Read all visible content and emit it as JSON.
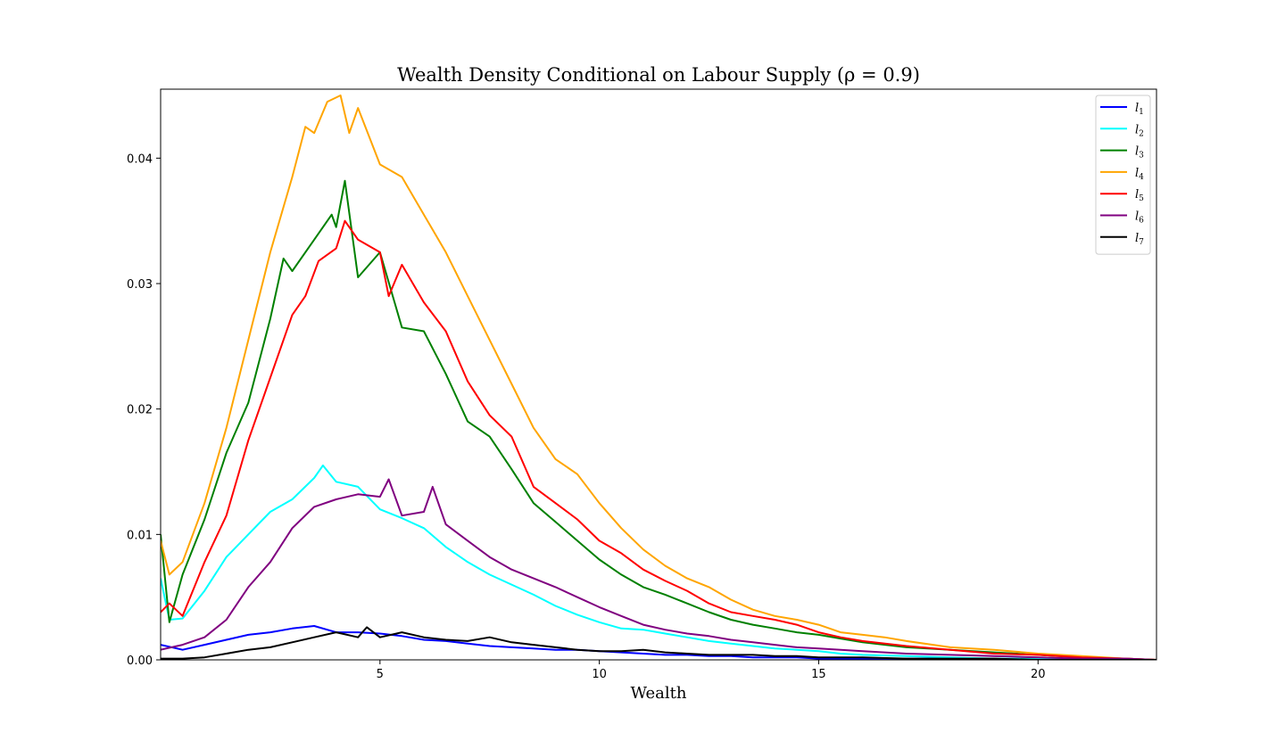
{
  "chart_data": {
    "type": "line",
    "title": "Wealth Density Conditional on Labour Supply (ρ = 0.9)",
    "xlabel": "Wealth",
    "ylabel": "",
    "xlim": [
      0,
      22.7
    ],
    "ylim": [
      0,
      0.0455
    ],
    "xticks": [
      5,
      10,
      15,
      20
    ],
    "yticks": [
      0.0,
      0.01,
      0.02,
      0.03,
      0.04
    ],
    "ytick_labels": [
      "0.00",
      "0.01",
      "0.02",
      "0.03",
      "0.04"
    ],
    "grid": false,
    "legend": "top-right",
    "series": [
      {
        "name": "l",
        "sub": "1",
        "color": "#0000ff",
        "x": [
          0,
          0.5,
          1,
          1.5,
          2,
          2.5,
          3,
          3.5,
          4,
          4.5,
          5,
          5.5,
          6,
          6.5,
          7,
          7.5,
          8,
          8.5,
          9,
          9.5,
          10,
          10.5,
          11,
          11.5,
          12,
          12.5,
          13,
          13.5,
          14,
          14.5,
          15,
          15.5,
          16,
          16.5,
          17,
          18,
          19,
          20,
          21,
          22,
          22.7
        ],
        "y": [
          0.0012,
          0.0008,
          0.0012,
          0.0016,
          0.002,
          0.0022,
          0.0025,
          0.0027,
          0.0022,
          0.0022,
          0.0021,
          0.0019,
          0.0016,
          0.0015,
          0.0013,
          0.0011,
          0.001,
          0.0009,
          0.0008,
          0.0008,
          0.0007,
          0.0006,
          0.0005,
          0.0004,
          0.0004,
          0.0003,
          0.0003,
          0.0002,
          0.0002,
          0.0002,
          0.0001,
          0.0001,
          0.0001,
          0.0001,
          0.0001,
          0.0001,
          0.0,
          0.0,
          0.0,
          0.0,
          0.0
        ]
      },
      {
        "name": "l",
        "sub": "2",
        "color": "#00ffff",
        "x": [
          0,
          0.2,
          0.5,
          1,
          1.5,
          2,
          2.5,
          3,
          3.5,
          3.7,
          4,
          4.5,
          5,
          5.5,
          6,
          6.5,
          7,
          7.5,
          8,
          8.5,
          9,
          9.5,
          10,
          10.5,
          11,
          11.5,
          12,
          12.5,
          13,
          13.5,
          14,
          14.5,
          15,
          15.5,
          16,
          17,
          18,
          19,
          20,
          21,
          22,
          22.7
        ],
        "y": [
          0.0065,
          0.0032,
          0.0033,
          0.0055,
          0.0082,
          0.01,
          0.0118,
          0.0128,
          0.0145,
          0.0155,
          0.0142,
          0.0138,
          0.012,
          0.0113,
          0.0105,
          0.009,
          0.0078,
          0.0068,
          0.006,
          0.0052,
          0.0043,
          0.0036,
          0.003,
          0.0025,
          0.0024,
          0.0021,
          0.0018,
          0.0015,
          0.0013,
          0.0011,
          0.0009,
          0.0008,
          0.0007,
          0.0005,
          0.0004,
          0.0003,
          0.0002,
          0.0001,
          0.0001,
          0.0,
          0.0,
          0.0
        ]
      },
      {
        "name": "l",
        "sub": "3",
        "color": "#008000",
        "x": [
          0,
          0.2,
          0.5,
          1,
          1.5,
          2,
          2.5,
          2.8,
          3,
          3.5,
          3.9,
          4,
          4.2,
          4.5,
          5,
          5.5,
          6,
          6.5,
          7,
          7.5,
          8,
          8.5,
          9,
          9.5,
          10,
          10.5,
          11,
          11.5,
          12,
          12.5,
          13,
          13.5,
          14,
          14.5,
          15,
          15.5,
          16,
          17,
          18,
          19,
          20,
          21,
          22,
          22.7
        ],
        "y": [
          0.01,
          0.003,
          0.0068,
          0.0112,
          0.0165,
          0.0205,
          0.0272,
          0.032,
          0.031,
          0.0335,
          0.0355,
          0.0345,
          0.0382,
          0.0305,
          0.0325,
          0.0265,
          0.0262,
          0.0228,
          0.019,
          0.0178,
          0.0152,
          0.0125,
          0.011,
          0.0095,
          0.008,
          0.0068,
          0.0058,
          0.0052,
          0.0045,
          0.0038,
          0.0032,
          0.0028,
          0.0025,
          0.0022,
          0.002,
          0.0017,
          0.0014,
          0.001,
          0.0008,
          0.0006,
          0.0004,
          0.0002,
          0.0001,
          0.0
        ]
      },
      {
        "name": "l",
        "sub": "4",
        "color": "#ffa500",
        "x": [
          0,
          0.2,
          0.5,
          1,
          1.5,
          2,
          2.5,
          3,
          3.3,
          3.5,
          3.8,
          4.1,
          4.3,
          4.5,
          5,
          5.5,
          6,
          6.5,
          7,
          7.5,
          8,
          8.5,
          9,
          9.5,
          10,
          10.5,
          11,
          11.5,
          12,
          12.5,
          13,
          13.5,
          14,
          14.5,
          15,
          15.5,
          16,
          16.5,
          17,
          18,
          19,
          20,
          21,
          22,
          22.7
        ],
        "y": [
          0.0095,
          0.0068,
          0.0078,
          0.0125,
          0.0185,
          0.0255,
          0.0325,
          0.0385,
          0.0425,
          0.042,
          0.0445,
          0.045,
          0.042,
          0.044,
          0.0395,
          0.0385,
          0.0355,
          0.0325,
          0.029,
          0.0255,
          0.022,
          0.0185,
          0.016,
          0.0148,
          0.0125,
          0.0105,
          0.0088,
          0.0075,
          0.0065,
          0.0058,
          0.0048,
          0.004,
          0.0035,
          0.0032,
          0.0028,
          0.0022,
          0.002,
          0.0018,
          0.0015,
          0.001,
          0.0008,
          0.0005,
          0.0003,
          0.0001,
          0.0
        ]
      },
      {
        "name": "l",
        "sub": "5",
        "color": "#ff0000",
        "x": [
          0,
          0.2,
          0.5,
          1,
          1.5,
          2,
          2.5,
          3,
          3.3,
          3.6,
          4,
          4.2,
          4.5,
          5,
          5.2,
          5.5,
          6,
          6.5,
          7,
          7.5,
          8,
          8.5,
          9,
          9.5,
          10,
          10.5,
          11,
          11.5,
          12,
          12.5,
          13,
          13.5,
          14,
          14.5,
          15,
          15.5,
          16,
          17,
          18,
          19,
          20,
          21,
          22,
          22.7
        ],
        "y": [
          0.0038,
          0.0045,
          0.0035,
          0.0078,
          0.0115,
          0.0175,
          0.0225,
          0.0275,
          0.029,
          0.0318,
          0.0328,
          0.035,
          0.0335,
          0.0325,
          0.029,
          0.0315,
          0.0285,
          0.0262,
          0.0222,
          0.0195,
          0.0178,
          0.0138,
          0.0125,
          0.0112,
          0.0095,
          0.0085,
          0.0072,
          0.0063,
          0.0055,
          0.0045,
          0.0038,
          0.0035,
          0.0032,
          0.0028,
          0.0022,
          0.0018,
          0.0015,
          0.0011,
          0.0008,
          0.0005,
          0.0004,
          0.0002,
          0.0001,
          0.0
        ]
      },
      {
        "name": "l",
        "sub": "6",
        "color": "#800080",
        "x": [
          0,
          0.5,
          1,
          1.5,
          2,
          2.5,
          3,
          3.5,
          4,
          4.5,
          5,
          5.2,
          5.5,
          6,
          6.2,
          6.5,
          7,
          7.5,
          8,
          8.5,
          9,
          9.5,
          10,
          10.5,
          11,
          11.5,
          12,
          12.5,
          13,
          13.5,
          14,
          14.5,
          15,
          15.5,
          16,
          17,
          18,
          19,
          20,
          21,
          22,
          22.7
        ],
        "y": [
          0.0008,
          0.0012,
          0.0018,
          0.0032,
          0.0058,
          0.0078,
          0.0105,
          0.0122,
          0.0128,
          0.0132,
          0.013,
          0.0144,
          0.0115,
          0.0118,
          0.0138,
          0.0108,
          0.0095,
          0.0082,
          0.0072,
          0.0065,
          0.0058,
          0.005,
          0.0042,
          0.0035,
          0.0028,
          0.0024,
          0.0021,
          0.0019,
          0.0016,
          0.0014,
          0.0012,
          0.001,
          0.0009,
          0.0008,
          0.0007,
          0.0005,
          0.0004,
          0.0003,
          0.0002,
          0.0001,
          0.0001,
          0.0
        ]
      },
      {
        "name": "l",
        "sub": "7",
        "color": "#000000",
        "x": [
          0,
          0.5,
          1,
          1.5,
          2,
          2.5,
          3,
          3.5,
          4,
          4.5,
          4.7,
          5,
          5.5,
          6,
          6.5,
          7,
          7.5,
          8,
          8.5,
          9,
          9.5,
          10,
          10.5,
          11,
          11.5,
          12,
          12.5,
          13,
          13.5,
          14,
          14.5,
          15,
          15.5,
          16,
          17,
          18,
          19,
          20,
          21,
          22,
          22.7
        ],
        "y": [
          0.0001,
          0.0001,
          0.0002,
          0.0005,
          0.0008,
          0.001,
          0.0014,
          0.0018,
          0.0022,
          0.0018,
          0.0026,
          0.0018,
          0.0022,
          0.0018,
          0.0016,
          0.0015,
          0.0018,
          0.0014,
          0.0012,
          0.001,
          0.0008,
          0.0007,
          0.0007,
          0.0008,
          0.0006,
          0.0005,
          0.0004,
          0.0004,
          0.0004,
          0.0003,
          0.0003,
          0.0002,
          0.0002,
          0.0002,
          0.0001,
          0.0001,
          0.0001,
          0.0,
          0.0,
          0.0,
          0.0
        ]
      }
    ]
  }
}
